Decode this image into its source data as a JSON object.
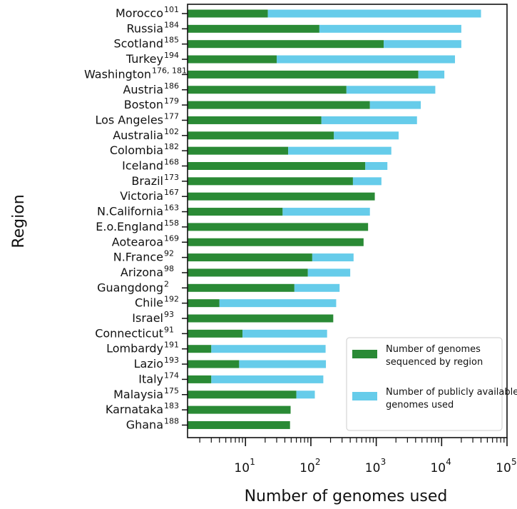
{
  "chart_data": {
    "type": "bar",
    "orientation": "horizontal",
    "stacked": true,
    "xscale": "log",
    "xlim": [
      1.3,
      100000
    ],
    "xlabel": "Number of genomes used",
    "ylabel": "Region",
    "xtick_labels": [
      {
        "base": "10",
        "exp": "1"
      },
      {
        "base": "10",
        "exp": "2"
      },
      {
        "base": "10",
        "exp": "3"
      },
      {
        "base": "10",
        "exp": "4"
      },
      {
        "base": "10",
        "exp": "5"
      }
    ],
    "xtick_values": [
      10,
      100,
      1000,
      10000,
      100000
    ],
    "categories": [
      {
        "name": "Morocco",
        "ref": "101"
      },
      {
        "name": "Russia",
        "ref": "184"
      },
      {
        "name": "Scotland",
        "ref": "185"
      },
      {
        "name": "Turkey",
        "ref": "194"
      },
      {
        "name": "Washington",
        "ref": "176, 181"
      },
      {
        "name": "Austria",
        "ref": "186"
      },
      {
        "name": "Boston",
        "ref": "179"
      },
      {
        "name": "Los Angeles",
        "ref": "177"
      },
      {
        "name": "Australia",
        "ref": "102"
      },
      {
        "name": "Colombia",
        "ref": "182"
      },
      {
        "name": "Iceland",
        "ref": "168"
      },
      {
        "name": "Brazil",
        "ref": "173"
      },
      {
        "name": "Victoria",
        "ref": "167"
      },
      {
        "name": "N.California",
        "ref": "163"
      },
      {
        "name": "E.o.England",
        "ref": "158"
      },
      {
        "name": "Aotearoa",
        "ref": "169"
      },
      {
        "name": "N.France",
        "ref": "92"
      },
      {
        "name": "Arizona",
        "ref": "98"
      },
      {
        "name": "Guangdong",
        "ref": "2"
      },
      {
        "name": "Chile",
        "ref": "192"
      },
      {
        "name": "Israel",
        "ref": "93"
      },
      {
        "name": "Connecticut",
        "ref": "91"
      },
      {
        "name": "Lombardy",
        "ref": "191"
      },
      {
        "name": "Lazio",
        "ref": "193"
      },
      {
        "name": "Italy",
        "ref": "174"
      },
      {
        "name": "Malaysia",
        "ref": "175"
      },
      {
        "name": "Karnataka",
        "ref": "183"
      },
      {
        "name": "Ghana",
        "ref": "188"
      }
    ],
    "series": [
      {
        "name": "Number of genomes sequenced by region",
        "color": "#2a8a35",
        "values": [
          22,
          135,
          1300,
          30,
          4400,
          350,
          800,
          145,
          225,
          45,
          680,
          440,
          950,
          37,
          750,
          640,
          105,
          90,
          56,
          4,
          220,
          9,
          3,
          8,
          3,
          60,
          49,
          48
        ]
      },
      {
        "name": "Number of publicly available genomes used",
        "color": "#66ccea",
        "values": [
          39978,
          19865,
          18700,
          15970,
          6600,
          7650,
          4000,
          4055,
          1975,
          1655,
          800,
          760,
          0,
          763,
          0,
          0,
          345,
          310,
          219,
          240,
          0,
          168,
          165,
          162,
          152,
          55,
          0,
          0
        ]
      }
    ],
    "legend": {
      "placement": "bottom-right",
      "entries": [
        "Number of genomes sequenced by region",
        "Number of publicly available genomes used"
      ]
    },
    "grid": false
  }
}
